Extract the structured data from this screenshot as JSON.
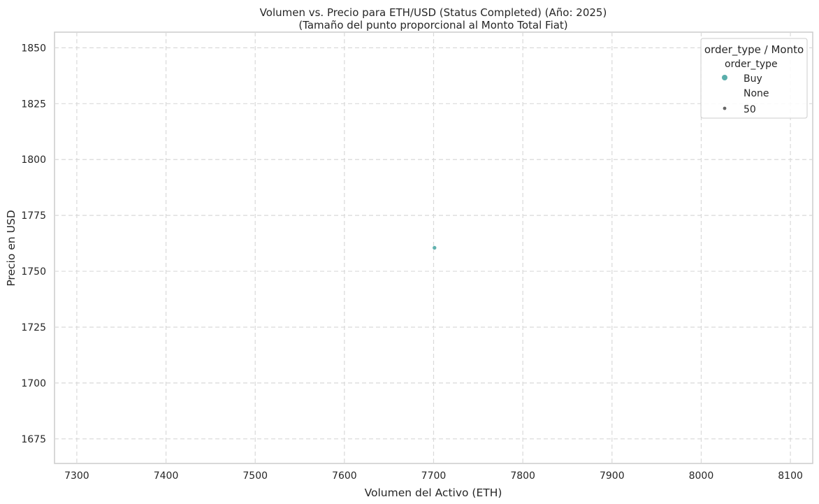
{
  "chart_data": {
    "type": "scatter",
    "title": "Volumen vs. Precio para ETH/USD (Status Completed) (Año: 2025)",
    "subtitle": "(Tamaño del punto proporcional al Monto Total Fiat)",
    "xlabel": "Volumen del Activo (ETH)",
    "ylabel": "Precio en USD",
    "xlim": [
      7275,
      8125
    ],
    "ylim": [
      1664,
      1857
    ],
    "xticks": [
      7300,
      7400,
      7500,
      7600,
      7700,
      7800,
      7900,
      8000,
      8100
    ],
    "yticks": [
      1675,
      1700,
      1725,
      1750,
      1775,
      1800,
      1825,
      1850
    ],
    "grid": true,
    "legend": {
      "placement": "top-right",
      "title": "order_type / Monto",
      "hue_heading": "order_type",
      "hue_entries": [
        {
          "label": "Buy",
          "color": "#5aaeab"
        }
      ],
      "size_heading": "None",
      "size_entries": [
        {
          "label": "50",
          "color": "#666666"
        }
      ]
    },
    "series": [
      {
        "name": "Buy",
        "color": "#5aaeab",
        "points": [
          {
            "x": 7701,
            "y": 1760.5
          }
        ]
      }
    ]
  }
}
